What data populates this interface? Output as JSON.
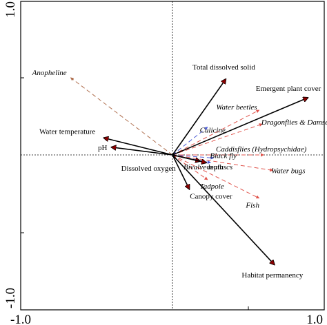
{
  "chart_data": {
    "type": "scatter",
    "title": "",
    "xlabel": "",
    "ylabel": "",
    "xlim": [
      -1.0,
      1.0
    ],
    "ylim": [
      -1.0,
      1.0
    ],
    "x_tick_labels": [
      "-1.0",
      "1.0"
    ],
    "y_tick_labels": [
      "1.0",
      "-1.0"
    ],
    "zero_lines": "dotted",
    "grid": false,
    "legend": "none",
    "colors": {
      "environment": "#000000",
      "species_red": "#e0524a",
      "species_blue": "#4f5fd6",
      "species_brown": "#b07050"
    },
    "environmental_vectors": [
      {
        "label": "Total dissolved solid",
        "x": 0.35,
        "y": 0.49
      },
      {
        "label": "Emergent plant cover",
        "x": 0.89,
        "y": 0.37
      },
      {
        "label": "Water temperature",
        "x": -0.45,
        "y": 0.11
      },
      {
        "label": "pH",
        "x": -0.4,
        "y": 0.05
      },
      {
        "label": "Dissolved oxygen",
        "x": 0.18,
        "y": -0.04
      },
      {
        "label": "depth",
        "x": 0.22,
        "y": -0.05
      },
      {
        "label": "Canopy cover",
        "x": 0.11,
        "y": -0.22
      },
      {
        "label": "Habitat permanency",
        "x": 0.67,
        "y": -0.71
      }
    ],
    "species": [
      {
        "label": "Anopheline",
        "x": -0.67,
        "y": 0.5,
        "color": "brown"
      },
      {
        "label": "Water beetles",
        "x": 0.57,
        "y": 0.29,
        "color": "red"
      },
      {
        "label": "Culicine",
        "x": 0.23,
        "y": 0.18,
        "color": "blue"
      },
      {
        "label": "Dragonflies & Damselflies",
        "x": 0.59,
        "y": 0.2,
        "color": "red"
      },
      {
        "label": "Caddisflies (Hydropsychidae)",
        "x": 0.6,
        "y": 0.0,
        "color": "red"
      },
      {
        "label": "Black fly",
        "x": 0.27,
        "y": -0.02,
        "color": "blue"
      },
      {
        "label": "Bivalve muluscs",
        "x": 0.25,
        "y": -0.05,
        "color": "blue"
      },
      {
        "label": "Water bugs",
        "x": 0.66,
        "y": -0.1,
        "color": "red"
      },
      {
        "label": "Tadpole",
        "x": 0.23,
        "y": -0.16,
        "color": "red"
      },
      {
        "label": "Fish",
        "x": 0.57,
        "y": -0.28,
        "color": "red"
      }
    ]
  }
}
